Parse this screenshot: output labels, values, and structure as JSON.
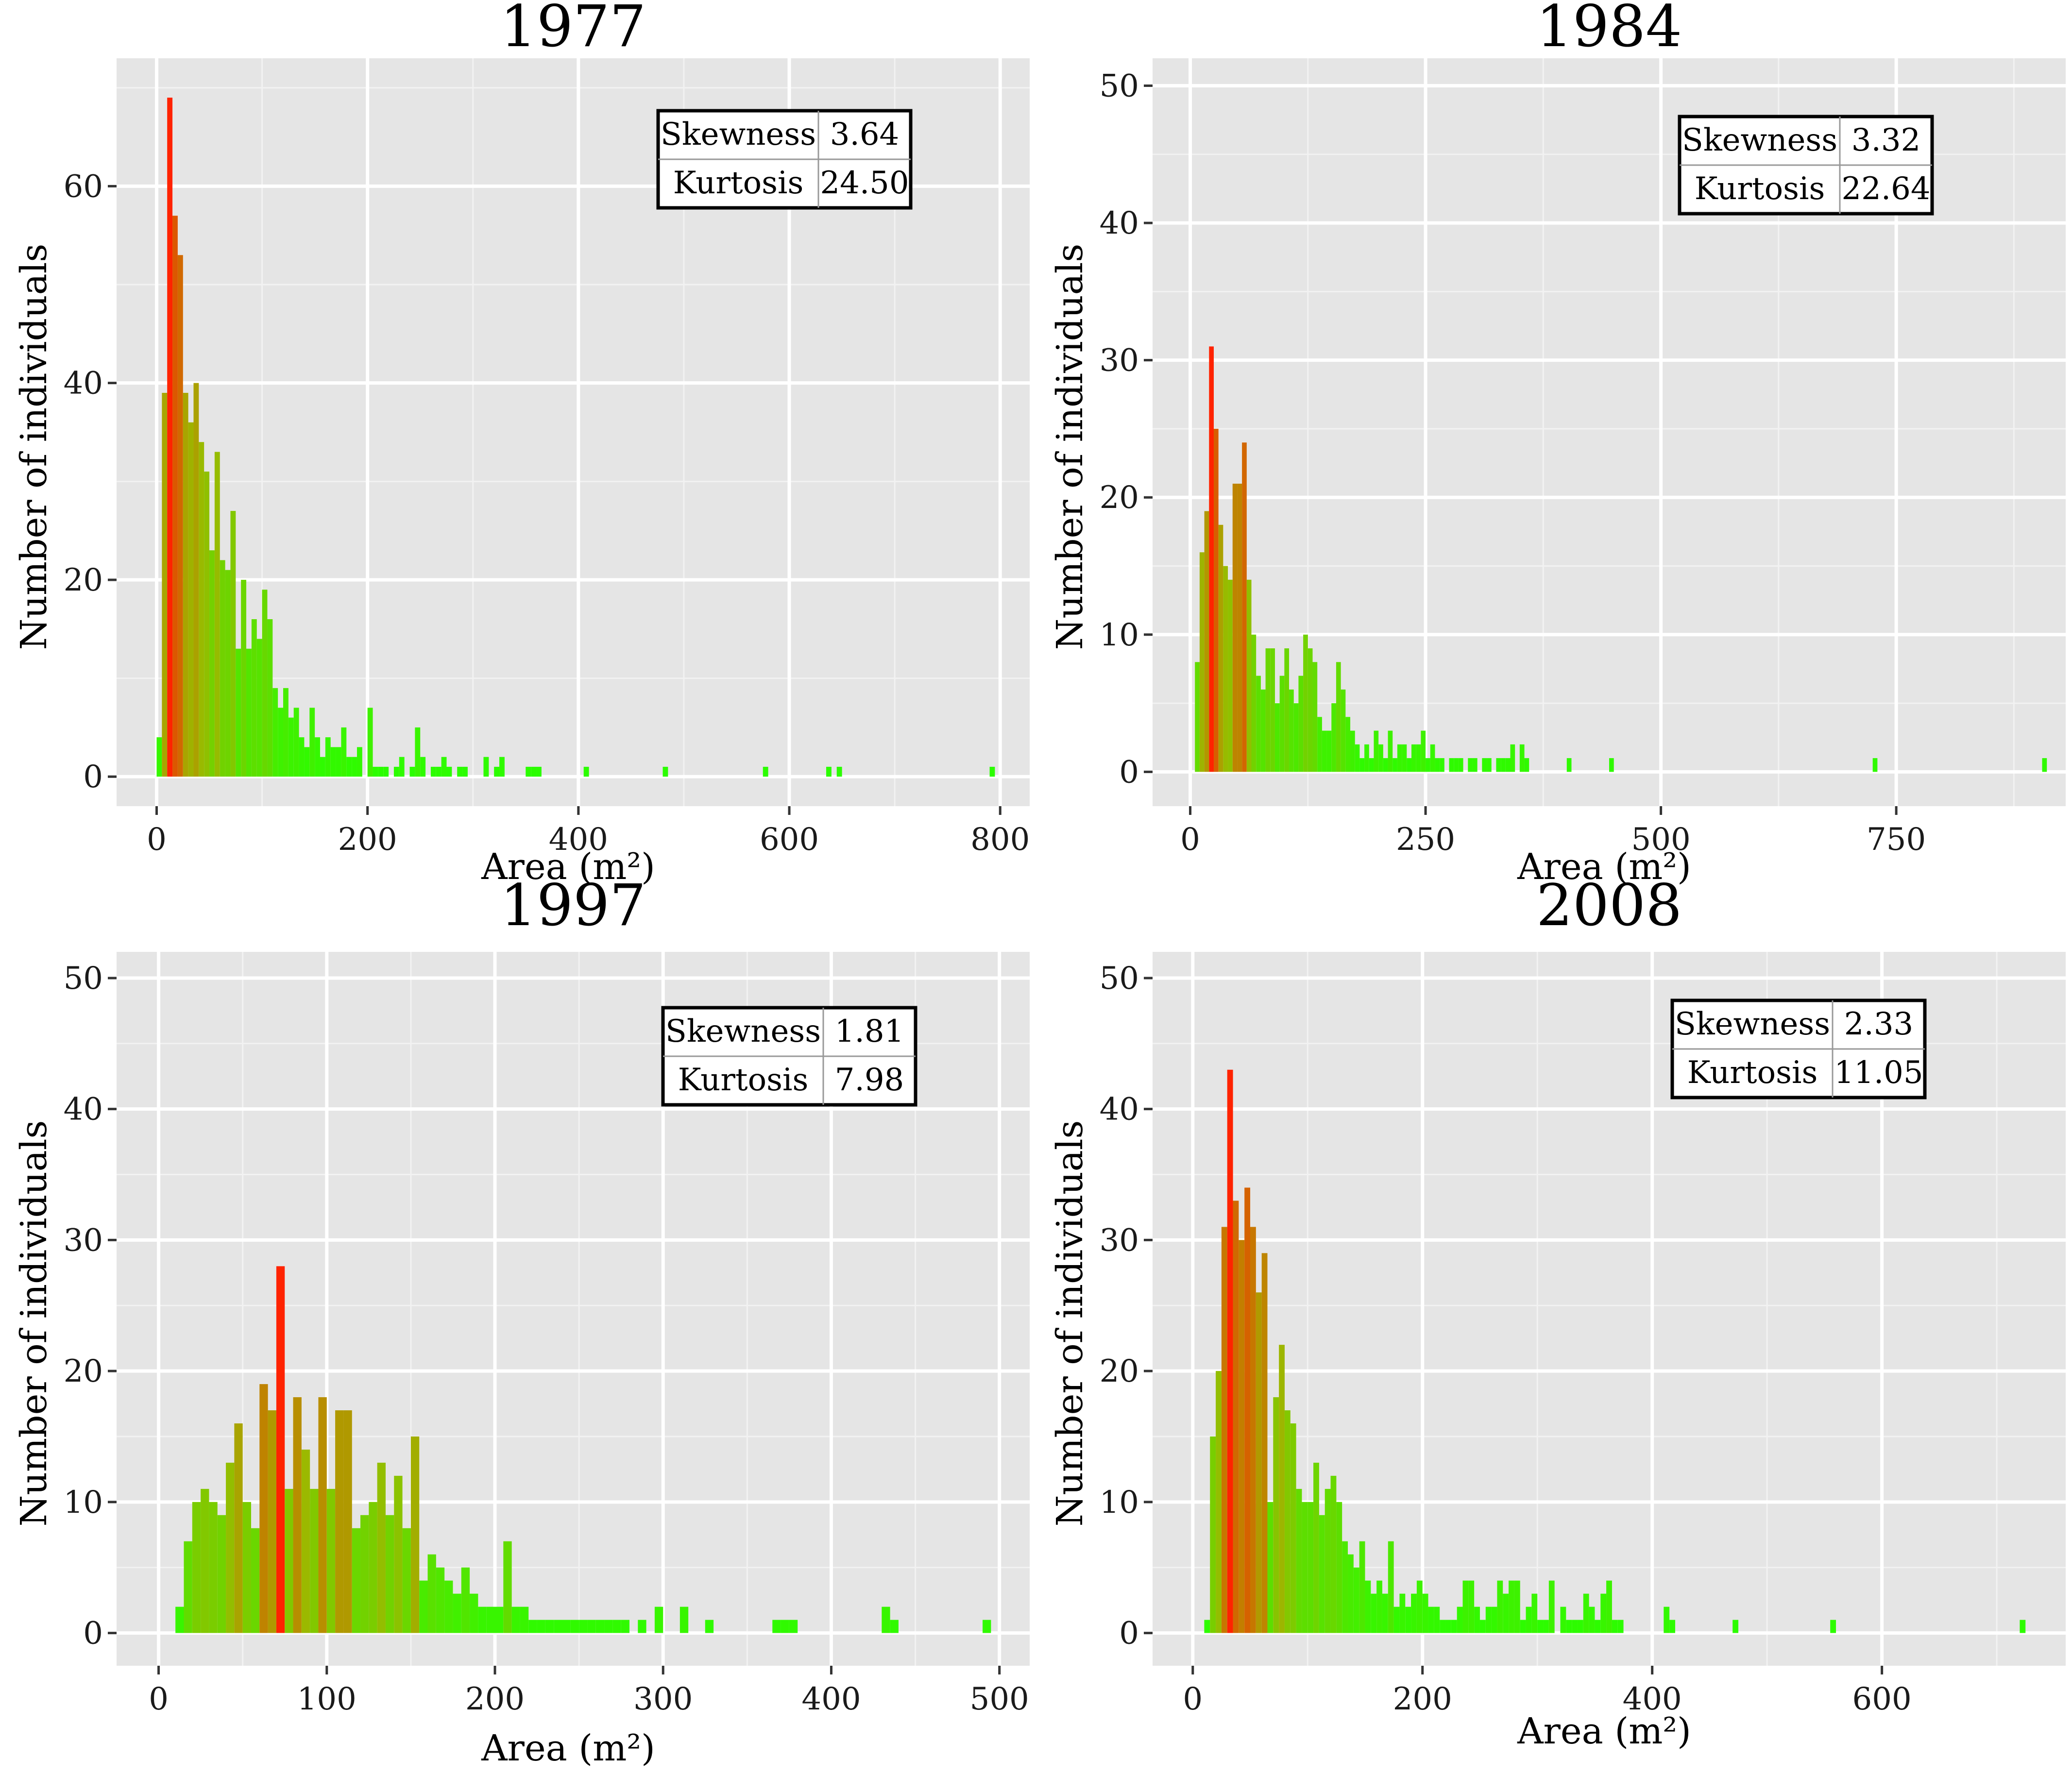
{
  "chart_data": [
    {
      "type": "bar",
      "title": "1977",
      "xlabel": "Area (m²)",
      "ylabel": "Number of individuals",
      "xlim": [
        -38,
        828
      ],
      "ylim": [
        -3,
        73
      ],
      "xticks": [
        0,
        200,
        400,
        600,
        800
      ],
      "yticks": [
        0,
        20,
        40,
        60
      ],
      "bin_width": 5,
      "stats": {
        "skewness_label": "Skewness",
        "skewness": "3.64",
        "kurtosis_label": "Kurtosis",
        "kurtosis": "24.50"
      },
      "bins": [
        [
          0,
          4
        ],
        [
          5,
          39
        ],
        [
          10,
          69
        ],
        [
          15,
          57
        ],
        [
          20,
          53
        ],
        [
          25,
          39
        ],
        [
          30,
          36
        ],
        [
          35,
          40
        ],
        [
          40,
          34
        ],
        [
          45,
          31
        ],
        [
          50,
          23
        ],
        [
          55,
          33
        ],
        [
          60,
          22
        ],
        [
          65,
          21
        ],
        [
          70,
          27
        ],
        [
          75,
          13
        ],
        [
          80,
          20
        ],
        [
          85,
          13
        ],
        [
          90,
          16
        ],
        [
          95,
          14
        ],
        [
          100,
          19
        ],
        [
          105,
          16
        ],
        [
          110,
          9
        ],
        [
          115,
          7
        ],
        [
          120,
          9
        ],
        [
          125,
          6
        ],
        [
          130,
          7
        ],
        [
          135,
          4
        ],
        [
          140,
          3
        ],
        [
          145,
          7
        ],
        [
          150,
          4
        ],
        [
          155,
          2
        ],
        [
          160,
          4
        ],
        [
          165,
          3
        ],
        [
          170,
          3
        ],
        [
          175,
          5
        ],
        [
          180,
          2
        ],
        [
          185,
          2
        ],
        [
          190,
          3
        ],
        [
          195,
          0
        ],
        [
          200,
          7
        ],
        [
          205,
          1
        ],
        [
          210,
          1
        ],
        [
          215,
          1
        ],
        [
          220,
          0
        ],
        [
          225,
          1
        ],
        [
          230,
          2
        ],
        [
          235,
          0
        ],
        [
          240,
          1
        ],
        [
          245,
          5
        ],
        [
          250,
          2
        ],
        [
          255,
          0
        ],
        [
          260,
          1
        ],
        [
          265,
          1
        ],
        [
          270,
          2
        ],
        [
          275,
          1
        ],
        [
          280,
          0
        ],
        [
          285,
          1
        ],
        [
          290,
          1
        ],
        [
          295,
          0
        ],
        [
          300,
          0
        ],
        [
          305,
          0
        ],
        [
          310,
          2
        ],
        [
          315,
          0
        ],
        [
          320,
          1
        ],
        [
          325,
          2
        ],
        [
          330,
          0
        ],
        [
          335,
          0
        ],
        [
          340,
          0
        ],
        [
          345,
          0
        ],
        [
          350,
          1
        ],
        [
          355,
          1
        ],
        [
          360,
          1
        ],
        [
          405,
          1
        ],
        [
          480,
          1
        ],
        [
          575,
          1
        ],
        [
          635,
          1
        ],
        [
          645,
          1
        ],
        [
          790,
          1
        ]
      ],
      "peak_bin": 10
    },
    {
      "type": "bar",
      "title": "1984",
      "xlabel": "Area (m²)",
      "ylabel": "Number of individuals",
      "xlim": [
        -40,
        930
      ],
      "ylim": [
        -2.5,
        52
      ],
      "xticks": [
        0,
        250,
        500,
        750
      ],
      "yticks": [
        0,
        10,
        20,
        30,
        40,
        50
      ],
      "bin_width": 5,
      "stats": {
        "skewness_label": "Skewness",
        "skewness": "3.32",
        "kurtosis_label": "Kurtosis",
        "kurtosis": "22.64"
      },
      "bins": [
        [
          5,
          8
        ],
        [
          10,
          16
        ],
        [
          15,
          19
        ],
        [
          20,
          31
        ],
        [
          25,
          25
        ],
        [
          30,
          18
        ],
        [
          35,
          15
        ],
        [
          40,
          14
        ],
        [
          45,
          21
        ],
        [
          50,
          21
        ],
        [
          55,
          24
        ],
        [
          60,
          14
        ],
        [
          65,
          10
        ],
        [
          70,
          7
        ],
        [
          75,
          6
        ],
        [
          80,
          9
        ],
        [
          85,
          9
        ],
        [
          90,
          5
        ],
        [
          95,
          7
        ],
        [
          100,
          9
        ],
        [
          105,
          6
        ],
        [
          110,
          5
        ],
        [
          115,
          7
        ],
        [
          120,
          10
        ],
        [
          125,
          9
        ],
        [
          130,
          8
        ],
        [
          135,
          4
        ],
        [
          140,
          3
        ],
        [
          145,
          3
        ],
        [
          150,
          5
        ],
        [
          155,
          8
        ],
        [
          160,
          6
        ],
        [
          165,
          4
        ],
        [
          170,
          3
        ],
        [
          175,
          2
        ],
        [
          180,
          1
        ],
        [
          185,
          2
        ],
        [
          190,
          1
        ],
        [
          195,
          3
        ],
        [
          200,
          2
        ],
        [
          205,
          1
        ],
        [
          210,
          3
        ],
        [
          215,
          1
        ],
        [
          220,
          2
        ],
        [
          225,
          2
        ],
        [
          230,
          1
        ],
        [
          235,
          2
        ],
        [
          240,
          2
        ],
        [
          245,
          3
        ],
        [
          250,
          1
        ],
        [
          255,
          2
        ],
        [
          260,
          1
        ],
        [
          265,
          1
        ],
        [
          270,
          0
        ],
        [
          275,
          1
        ],
        [
          280,
          1
        ],
        [
          285,
          1
        ],
        [
          290,
          0
        ],
        [
          295,
          1
        ],
        [
          300,
          1
        ],
        [
          305,
          0
        ],
        [
          310,
          1
        ],
        [
          315,
          1
        ],
        [
          320,
          0
        ],
        [
          325,
          1
        ],
        [
          330,
          1
        ],
        [
          335,
          1
        ],
        [
          340,
          2
        ],
        [
          345,
          0
        ],
        [
          350,
          2
        ],
        [
          355,
          1
        ],
        [
          400,
          1
        ],
        [
          445,
          1
        ],
        [
          725,
          1
        ],
        [
          905,
          1
        ]
      ],
      "peak_bin": 20
    },
    {
      "type": "bar",
      "title": "1997",
      "xlabel": "Area (m²)",
      "ylabel": "Number of individuals",
      "xlim": [
        -25,
        518
      ],
      "ylim": [
        -2.5,
        52
      ],
      "xticks": [
        0,
        100,
        200,
        300,
        400,
        500
      ],
      "yticks": [
        0,
        10,
        20,
        30,
        40,
        50
      ],
      "bin_width": 5,
      "stats": {
        "skewness_label": "Skewness",
        "skewness": "1.81",
        "kurtosis_label": "Kurtosis",
        "kurtosis": "7.98"
      },
      "bins": [
        [
          10,
          2
        ],
        [
          15,
          7
        ],
        [
          20,
          10
        ],
        [
          25,
          11
        ],
        [
          30,
          10
        ],
        [
          35,
          9
        ],
        [
          40,
          13
        ],
        [
          45,
          16
        ],
        [
          50,
          10
        ],
        [
          55,
          8
        ],
        [
          60,
          19
        ],
        [
          65,
          17
        ],
        [
          70,
          28
        ],
        [
          75,
          11
        ],
        [
          80,
          18
        ],
        [
          85,
          14
        ],
        [
          90,
          11
        ],
        [
          95,
          18
        ],
        [
          100,
          11
        ],
        [
          105,
          17
        ],
        [
          110,
          17
        ],
        [
          115,
          8
        ],
        [
          120,
          9
        ],
        [
          125,
          10
        ],
        [
          130,
          13
        ],
        [
          135,
          9
        ],
        [
          140,
          12
        ],
        [
          145,
          8
        ],
        [
          150,
          15
        ],
        [
          155,
          4
        ],
        [
          160,
          6
        ],
        [
          165,
          5
        ],
        [
          170,
          4
        ],
        [
          175,
          3
        ],
        [
          180,
          5
        ],
        [
          185,
          3
        ],
        [
          190,
          2
        ],
        [
          195,
          2
        ],
        [
          200,
          2
        ],
        [
          205,
          7
        ],
        [
          210,
          2
        ],
        [
          215,
          2
        ],
        [
          220,
          1
        ],
        [
          225,
          1
        ],
        [
          230,
          1
        ],
        [
          235,
          1
        ],
        [
          240,
          1
        ],
        [
          245,
          1
        ],
        [
          250,
          1
        ],
        [
          255,
          1
        ],
        [
          260,
          1
        ],
        [
          265,
          1
        ],
        [
          270,
          1
        ],
        [
          275,
          1
        ],
        [
          285,
          1
        ],
        [
          295,
          2
        ],
        [
          310,
          2
        ],
        [
          325,
          1
        ],
        [
          365,
          1
        ],
        [
          370,
          1
        ],
        [
          375,
          1
        ],
        [
          430,
          2
        ],
        [
          435,
          1
        ],
        [
          490,
          1
        ]
      ],
      "peak_bin": 70
    },
    {
      "type": "bar",
      "title": "2008",
      "xlabel": "Area (m²)",
      "ylabel": "Number of individuals",
      "xlim": [
        -35,
        760
      ],
      "ylim": [
        -2.5,
        52
      ],
      "xticks": [
        0,
        200,
        400,
        600
      ],
      "yticks": [
        0,
        10,
        20,
        30,
        40,
        50
      ],
      "bin_width": 5,
      "stats": {
        "skewness_label": "Skewness",
        "skewness": "2.33",
        "kurtosis_label": "Kurtosis",
        "kurtosis": "11.05"
      },
      "bins": [
        [
          10,
          1
        ],
        [
          15,
          15
        ],
        [
          20,
          20
        ],
        [
          25,
          31
        ],
        [
          30,
          43
        ],
        [
          35,
          33
        ],
        [
          40,
          30
        ],
        [
          45,
          34
        ],
        [
          50,
          31
        ],
        [
          55,
          26
        ],
        [
          60,
          29
        ],
        [
          65,
          10
        ],
        [
          70,
          18
        ],
        [
          75,
          22
        ],
        [
          80,
          17
        ],
        [
          85,
          16
        ],
        [
          90,
          11
        ],
        [
          95,
          10
        ],
        [
          100,
          10
        ],
        [
          105,
          13
        ],
        [
          110,
          9
        ],
        [
          115,
          11
        ],
        [
          120,
          12
        ],
        [
          125,
          10
        ],
        [
          130,
          7
        ],
        [
          135,
          6
        ],
        [
          140,
          5
        ],
        [
          145,
          7
        ],
        [
          150,
          4
        ],
        [
          155,
          3
        ],
        [
          160,
          4
        ],
        [
          165,
          3
        ],
        [
          170,
          7
        ],
        [
          175,
          2
        ],
        [
          180,
          3
        ],
        [
          185,
          2
        ],
        [
          190,
          3
        ],
        [
          195,
          4
        ],
        [
          200,
          3
        ],
        [
          205,
          2
        ],
        [
          210,
          2
        ],
        [
          215,
          1
        ],
        [
          220,
          1
        ],
        [
          225,
          1
        ],
        [
          230,
          2
        ],
        [
          235,
          4
        ],
        [
          240,
          4
        ],
        [
          245,
          2
        ],
        [
          250,
          1
        ],
        [
          255,
          2
        ],
        [
          260,
          2
        ],
        [
          265,
          4
        ],
        [
          270,
          3
        ],
        [
          275,
          4
        ],
        [
          280,
          4
        ],
        [
          285,
          1
        ],
        [
          290,
          2
        ],
        [
          295,
          3
        ],
        [
          300,
          1
        ],
        [
          305,
          1
        ],
        [
          310,
          4
        ],
        [
          320,
          2
        ],
        [
          325,
          1
        ],
        [
          330,
          1
        ],
        [
          335,
          1
        ],
        [
          340,
          3
        ],
        [
          345,
          2
        ],
        [
          350,
          1
        ],
        [
          355,
          3
        ],
        [
          360,
          4
        ],
        [
          365,
          1
        ],
        [
          370,
          1
        ],
        [
          410,
          2
        ],
        [
          415,
          1
        ],
        [
          470,
          1
        ],
        [
          555,
          1
        ],
        [
          720,
          1
        ]
      ],
      "peak_bin": 30
    }
  ]
}
